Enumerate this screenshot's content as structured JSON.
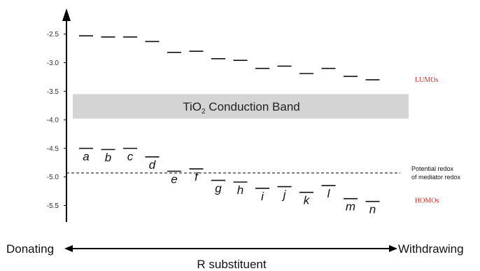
{
  "chart_data": {
    "type": "energy-level-diagram",
    "y_ticks": [
      "-2.5",
      "-3.0",
      "-3.5",
      "-4.0",
      "-4.5",
      "-5.0",
      "-5.5"
    ],
    "y_tick_values": [
      -2.5,
      -3.0,
      -3.5,
      -4.0,
      -4.5,
      -5.0,
      -5.5
    ],
    "ylim": [
      -5.85,
      -2.05
    ],
    "conduction_band": {
      "label_main": "TiO",
      "label_sub": "2",
      "label_rest": " Conduction Band",
      "top": -3.55,
      "bottom": -3.98,
      "color": "#d4d4d4"
    },
    "lumo_label": "LUMOs",
    "homo_label": "HOMOs",
    "lumo_values": [
      -2.53,
      -2.55,
      -2.55,
      -2.63,
      -2.82,
      -2.8,
      -2.93,
      -2.96,
      -3.1,
      -3.06,
      -3.19,
      -3.1,
      -3.24,
      -3.3
    ],
    "homo_values": [
      -4.5,
      -4.52,
      -4.5,
      -4.65,
      -4.9,
      -4.86,
      -5.06,
      -5.09,
      -5.2,
      -5.17,
      -5.27,
      -5.15,
      -5.38,
      -5.43
    ],
    "level_labels": [
      "a",
      "b",
      "c",
      "d",
      "e",
      "f",
      "g",
      "h",
      "i",
      "j",
      "k",
      "l",
      "m",
      "n"
    ],
    "mediator_redox_value": -4.93,
    "mediator_label_line1": "Potential redox",
    "mediator_label_line2": "of mediator redox",
    "x_left_label": "Donating",
    "x_right_label": "Withdrawing",
    "x_axis_title": "R substituent",
    "red_color": "#e0302a"
  }
}
